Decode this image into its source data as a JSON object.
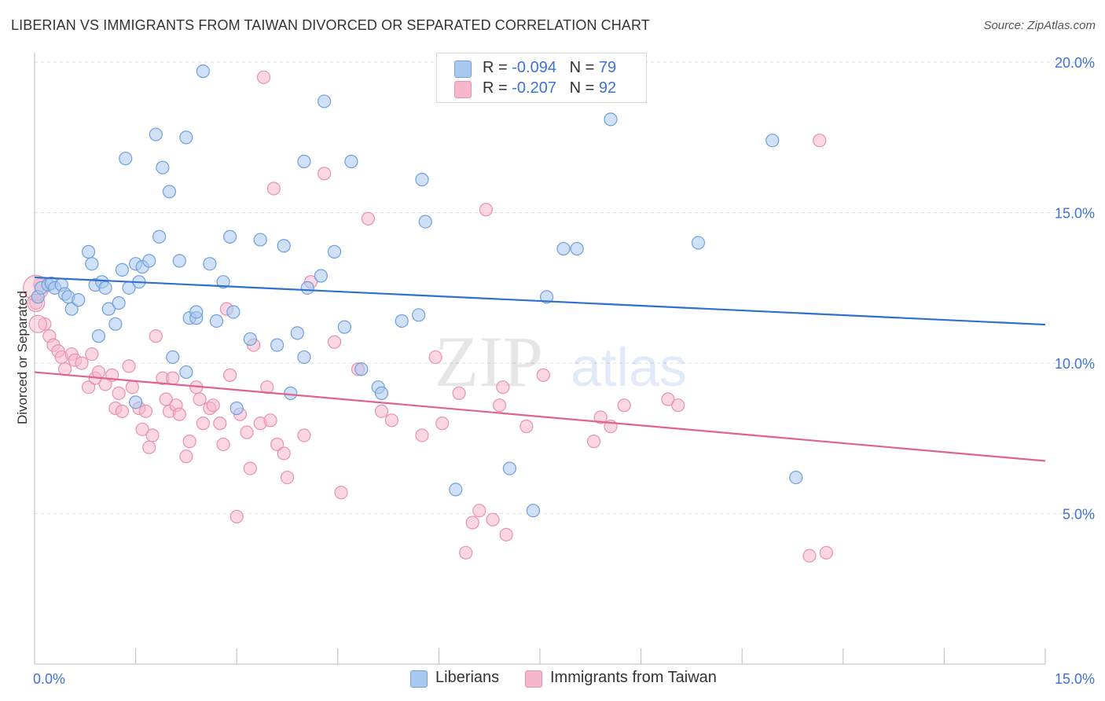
{
  "title": "LIBERIAN VS IMMIGRANTS FROM TAIWAN DIVORCED OR SEPARATED CORRELATION CHART",
  "source": "Source: ZipAtlas.com",
  "watermark": {
    "zip": "ZIP",
    "atlas": "atlas"
  },
  "legend": {
    "rows": [
      {
        "r_label": "R = ",
        "r_value": "-0.094",
        "n_label": "N = ",
        "n_value": "79"
      },
      {
        "r_label": "R = ",
        "r_value": "-0.207",
        "n_label": "N = ",
        "n_value": "92"
      }
    ]
  },
  "colors": {
    "blue_fill": "#a9c9f0",
    "blue_stroke": "#6f9fdc",
    "blue_line": "#2f6fd0",
    "pink_fill": "#f6b7ca",
    "pink_stroke": "#e991ad",
    "pink_line": "#e0628f",
    "grid": "#dddddd",
    "tick_label": "#3d72d6"
  },
  "chart_data": {
    "type": "scatter",
    "title": "LIBERIAN VS IMMIGRANTS FROM TAIWAN DIVORCED OR SEPARATED CORRELATION CHART",
    "xlabel": "",
    "ylabel": "Divorced or Separated",
    "xlim": [
      0,
      15
    ],
    "ylim": [
      0,
      20.5
    ],
    "x_tick_labels": [
      "0.0%",
      "15.0%"
    ],
    "y_ticks": [
      5,
      10,
      15,
      20
    ],
    "y_tick_labels": [
      "5.0%",
      "10.0%",
      "15.0%",
      "20.0%"
    ],
    "grid": "horizontal dashed",
    "legend_position": "top-center",
    "series": [
      {
        "name": "Liberians",
        "color": "#a9c9f0",
        "trend": {
          "x": [
            0,
            15
          ],
          "y": [
            12.85,
            11.28
          ]
        },
        "points": [
          [
            0.05,
            12.2
          ],
          [
            0.1,
            12.5
          ],
          [
            0.2,
            12.6
          ],
          [
            0.25,
            12.65
          ],
          [
            0.3,
            12.5
          ],
          [
            0.4,
            12.6
          ],
          [
            0.45,
            12.3
          ],
          [
            0.5,
            12.2
          ],
          [
            0.55,
            11.8
          ],
          [
            0.65,
            12.1
          ],
          [
            0.8,
            13.7
          ],
          [
            0.85,
            13.3
          ],
          [
            0.9,
            12.6
          ],
          [
            0.95,
            10.9
          ],
          [
            1.0,
            12.7
          ],
          [
            1.05,
            12.5
          ],
          [
            1.1,
            11.8
          ],
          [
            1.2,
            11.3
          ],
          [
            1.25,
            12.0
          ],
          [
            1.3,
            13.1
          ],
          [
            1.35,
            16.8
          ],
          [
            1.4,
            12.5
          ],
          [
            1.5,
            8.7
          ],
          [
            1.5,
            13.3
          ],
          [
            1.55,
            12.7
          ],
          [
            1.6,
            13.2
          ],
          [
            1.7,
            13.4
          ],
          [
            1.8,
            17.6
          ],
          [
            1.85,
            14.2
          ],
          [
            1.9,
            16.5
          ],
          [
            2.0,
            15.7
          ],
          [
            2.05,
            10.2
          ],
          [
            2.15,
            13.4
          ],
          [
            2.25,
            17.5
          ],
          [
            2.25,
            9.7
          ],
          [
            2.3,
            11.5
          ],
          [
            2.4,
            11.5
          ],
          [
            2.4,
            11.7
          ],
          [
            2.5,
            19.7
          ],
          [
            2.6,
            13.3
          ],
          [
            2.7,
            11.4
          ],
          [
            2.8,
            12.7
          ],
          [
            2.9,
            14.2
          ],
          [
            2.95,
            11.7
          ],
          [
            3.0,
            8.5
          ],
          [
            3.2,
            10.8
          ],
          [
            3.35,
            14.1
          ],
          [
            3.6,
            10.6
          ],
          [
            3.7,
            13.9
          ],
          [
            3.8,
            9.0
          ],
          [
            3.9,
            11.0
          ],
          [
            4.0,
            16.7
          ],
          [
            4.0,
            10.2
          ],
          [
            4.05,
            12.5
          ],
          [
            4.25,
            12.9
          ],
          [
            4.3,
            18.7
          ],
          [
            4.45,
            13.7
          ],
          [
            4.6,
            11.2
          ],
          [
            4.7,
            16.7
          ],
          [
            4.85,
            9.8
          ],
          [
            5.1,
            9.2
          ],
          [
            5.15,
            9.0
          ],
          [
            5.45,
            11.4
          ],
          [
            5.7,
            11.6
          ],
          [
            5.75,
            16.1
          ],
          [
            5.8,
            14.7
          ],
          [
            6.25,
            5.8
          ],
          [
            7.05,
            6.5
          ],
          [
            7.4,
            5.1
          ],
          [
            7.6,
            12.2
          ],
          [
            7.85,
            13.8
          ],
          [
            8.05,
            13.8
          ],
          [
            8.55,
            18.1
          ],
          [
            9.85,
            14.0
          ],
          [
            10.95,
            17.4
          ],
          [
            11.3,
            6.2
          ]
        ]
      },
      {
        "name": "Immigrants from Taiwan",
        "color": "#f6b7ca",
        "trend": {
          "x": [
            0,
            15
          ],
          "y": [
            9.7,
            6.75
          ]
        },
        "points": [
          [
            0.02,
            12.0
          ],
          [
            0.08,
            12.6
          ],
          [
            0.15,
            11.3
          ],
          [
            0.22,
            10.9
          ],
          [
            0.28,
            10.6
          ],
          [
            0.35,
            10.4
          ],
          [
            0.4,
            10.2
          ],
          [
            0.45,
            9.8
          ],
          [
            0.55,
            10.3
          ],
          [
            0.6,
            10.1
          ],
          [
            0.7,
            10.0
          ],
          [
            0.8,
            9.2
          ],
          [
            0.85,
            10.3
          ],
          [
            0.9,
            9.5
          ],
          [
            0.95,
            9.7
          ],
          [
            1.05,
            9.3
          ],
          [
            1.15,
            9.6
          ],
          [
            1.2,
            8.5
          ],
          [
            1.25,
            9.0
          ],
          [
            1.3,
            8.4
          ],
          [
            1.4,
            9.9
          ],
          [
            1.45,
            9.2
          ],
          [
            1.55,
            8.5
          ],
          [
            1.6,
            7.8
          ],
          [
            1.65,
            8.4
          ],
          [
            1.7,
            7.2
          ],
          [
            1.75,
            7.6
          ],
          [
            1.8,
            10.9
          ],
          [
            1.9,
            9.5
          ],
          [
            1.95,
            8.8
          ],
          [
            2.0,
            8.4
          ],
          [
            2.05,
            9.5
          ],
          [
            2.1,
            8.6
          ],
          [
            2.15,
            8.3
          ],
          [
            2.25,
            6.9
          ],
          [
            2.3,
            7.4
          ],
          [
            2.4,
            9.2
          ],
          [
            2.45,
            8.8
          ],
          [
            2.5,
            8.0
          ],
          [
            2.6,
            8.5
          ],
          [
            2.65,
            8.6
          ],
          [
            2.75,
            8.0
          ],
          [
            2.8,
            7.3
          ],
          [
            2.85,
            11.8
          ],
          [
            2.9,
            9.6
          ],
          [
            3.0,
            4.9
          ],
          [
            3.05,
            8.3
          ],
          [
            3.15,
            7.7
          ],
          [
            3.2,
            6.5
          ],
          [
            3.25,
            10.6
          ],
          [
            3.35,
            8.0
          ],
          [
            3.4,
            19.5
          ],
          [
            3.45,
            9.2
          ],
          [
            3.5,
            8.1
          ],
          [
            3.55,
            15.8
          ],
          [
            3.6,
            7.3
          ],
          [
            3.7,
            7.0
          ],
          [
            3.75,
            6.2
          ],
          [
            4.0,
            7.6
          ],
          [
            4.1,
            12.7
          ],
          [
            4.3,
            16.3
          ],
          [
            4.45,
            10.7
          ],
          [
            4.55,
            5.7
          ],
          [
            4.8,
            9.8
          ],
          [
            4.95,
            14.8
          ],
          [
            5.15,
            8.4
          ],
          [
            5.3,
            8.1
          ],
          [
            5.75,
            7.6
          ],
          [
            5.95,
            10.2
          ],
          [
            6.05,
            8.0
          ],
          [
            6.3,
            9.0
          ],
          [
            6.4,
            3.7
          ],
          [
            6.5,
            4.7
          ],
          [
            6.6,
            5.1
          ],
          [
            6.7,
            15.1
          ],
          [
            6.8,
            4.8
          ],
          [
            6.9,
            8.6
          ],
          [
            6.95,
            9.2
          ],
          [
            7.0,
            4.3
          ],
          [
            7.3,
            7.9
          ],
          [
            7.55,
            9.6
          ],
          [
            8.3,
            7.4
          ],
          [
            8.4,
            8.2
          ],
          [
            8.55,
            7.9
          ],
          [
            8.75,
            8.6
          ],
          [
            9.4,
            8.8
          ],
          [
            9.55,
            8.6
          ],
          [
            11.5,
            3.6
          ],
          [
            11.65,
            17.4
          ],
          [
            11.75,
            3.7
          ]
        ]
      }
    ]
  }
}
